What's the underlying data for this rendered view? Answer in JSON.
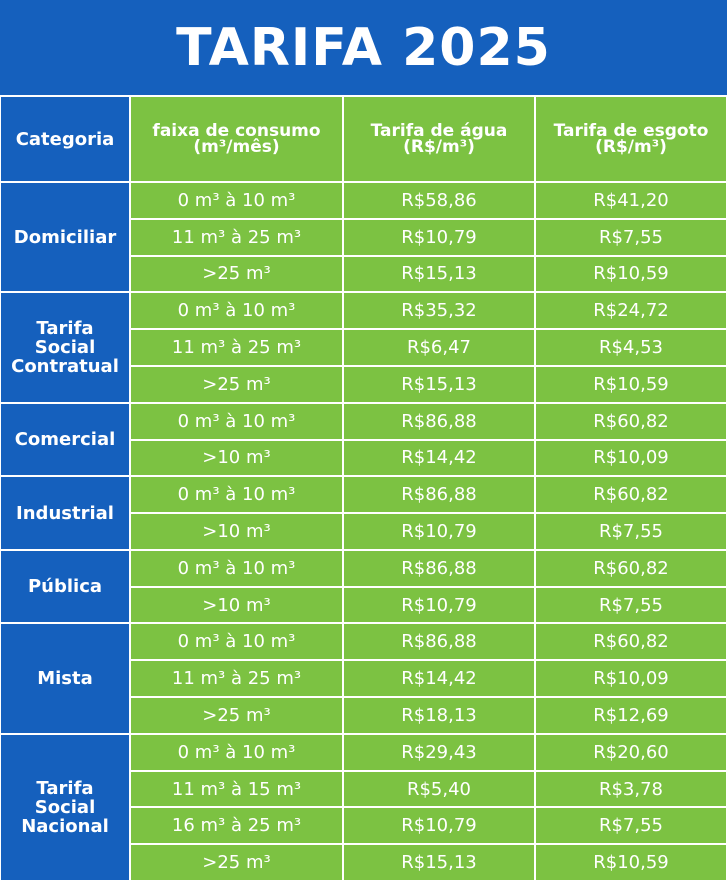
{
  "title": "TARIFA 2025",
  "table": {
    "header": [
      "Categoria",
      "faixa de consumo (m³/mês)",
      "Tarifa de água (R$/m³)",
      "Tarifa de esgoto (R$/m³)"
    ],
    "groups": [
      {
        "category": "Domiciliar",
        "rows": [
          [
            "0 m³ à 10 m³",
            "R$58,86",
            "R$41,20"
          ],
          [
            "11 m³ à 25 m³",
            "R$10,79",
            "R$7,55"
          ],
          [
            ">25 m³",
            "R$15,13",
            "R$10,59"
          ]
        ]
      },
      {
        "category": "Tarifa Social Contratual",
        "rows": [
          [
            "0 m³ à 10 m³",
            "R$35,32",
            "R$24,72"
          ],
          [
            "11 m³ à 25 m³",
            "R$6,47",
            "R$4,53"
          ],
          [
            ">25 m³",
            "R$15,13",
            "R$10,59"
          ]
        ]
      },
      {
        "category": "Comercial",
        "rows": [
          [
            "0 m³ à 10 m³",
            "R$86,88",
            "R$60,82"
          ],
          [
            ">10 m³",
            "R$14,42",
            "R$10,09"
          ]
        ]
      },
      {
        "category": "Industrial",
        "rows": [
          [
            "0 m³ à 10 m³",
            "R$86,88",
            "R$60,82"
          ],
          [
            ">10 m³",
            "R$10,79",
            "R$7,55"
          ]
        ]
      },
      {
        "category": "Pública",
        "rows": [
          [
            "0 m³ à 10 m³",
            "R$86,88",
            "R$60,82"
          ],
          [
            ">10 m³",
            "R$10,79",
            "R$7,55"
          ]
        ]
      },
      {
        "category": "Mista",
        "rows": [
          [
            "0 m³ à 10 m³",
            "R$86,88",
            "R$60,82"
          ],
          [
            "11 m³ à 25 m³",
            "R$14,42",
            "R$10,09"
          ],
          [
            ">25 m³",
            "R$18,13",
            "R$12,69"
          ]
        ]
      },
      {
        "category": "Tarifa Social Nacional",
        "rows": [
          [
            "0 m³ à 10 m³",
            "R$29,43",
            "R$20,60"
          ],
          [
            "11 m³ à 15 m³",
            "R$5,40",
            "R$3,78"
          ],
          [
            "16 m³ à 25 m³",
            "R$10,79",
            "R$7,55"
          ],
          [
            ">25 m³",
            "R$15,13",
            "R$10,59"
          ]
        ]
      }
    ]
  }
}
